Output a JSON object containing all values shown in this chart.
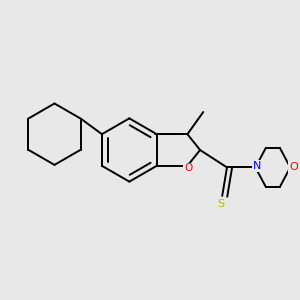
{
  "background_color": "#e8e8e8",
  "bond_color": "#000000",
  "atom_colors": {
    "O": "#ff0000",
    "N": "#0000ff",
    "S": "#b8b800",
    "C": "#000000"
  },
  "line_width": 1.4,
  "figsize": [
    3.0,
    3.0
  ],
  "dpi": 100
}
